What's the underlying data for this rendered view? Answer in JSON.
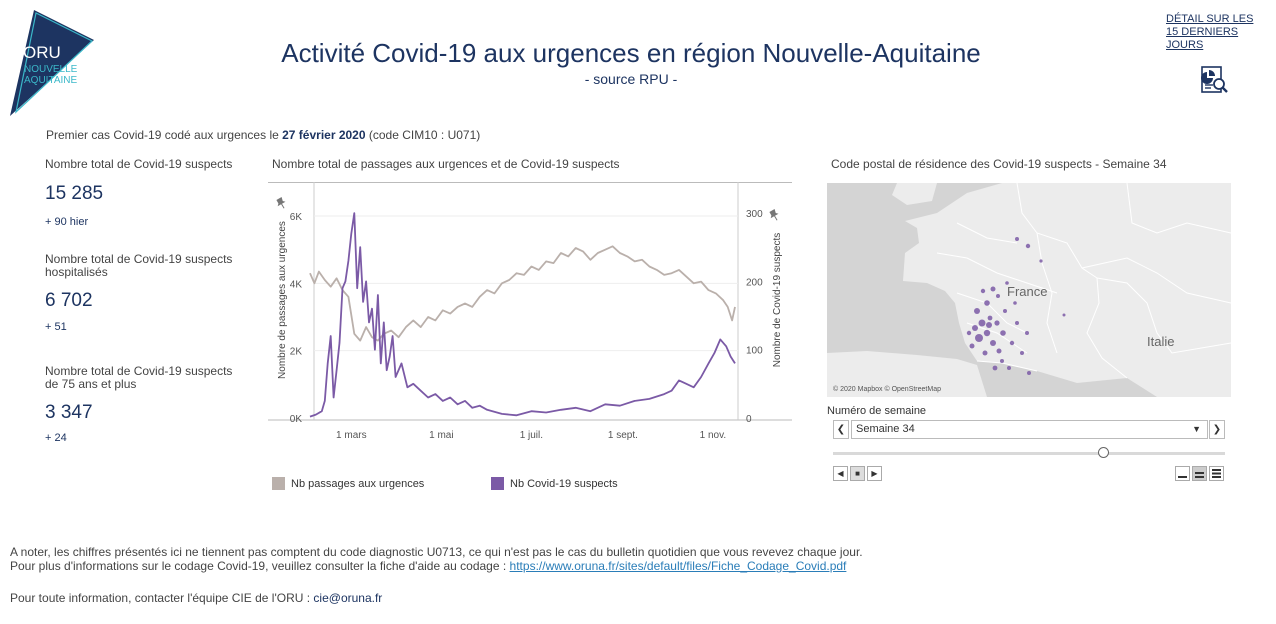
{
  "brand": {
    "logo_main": "ORU",
    "logo_line1": "NOUVELLE",
    "logo_line2": "AQUITAINE",
    "color_primary": "#1d3461",
    "color_accent": "#3bb8c9"
  },
  "header": {
    "title": "Activité Covid-19 aux urgences en région Nouvelle-Aquitaine",
    "subtitle": "- source RPU -",
    "detail_link": "DÉTAIL SUR LES 15 DERNIERS JOURS",
    "detail_icon": "report-search-icon"
  },
  "first_case": {
    "prefix": "Premier cas Covid-19 codé aux urgences le",
    "date": "27 février 2020",
    "suffix": "(code CIM10 : U071)"
  },
  "kpis": [
    {
      "label": "Nombre total de Covid-19 suspects",
      "value": "15 285",
      "delta": "+ 90 hier"
    },
    {
      "label": "Nombre total de Covid-19 suspects hospitalisés",
      "value": "6 702",
      "delta": "+ 51"
    },
    {
      "label": "Nombre total de Covid-19 suspects de 75 ans et plus",
      "value": "3 347",
      "delta": "+ 24"
    }
  ],
  "chart": {
    "title": "Nombre total de passages aux urgences et de Covid-19 suspects"
  },
  "chart_data": {
    "type": "line",
    "x_ticks": [
      "1 mars",
      "1 mai",
      "1 juil.",
      "1 sept.",
      "1 nov."
    ],
    "x_tick_days": [
      28,
      89,
      150,
      212,
      273
    ],
    "x_range_days": [
      0,
      290
    ],
    "y_left_label": "Nombre de passages aux urgences",
    "y_left_ticks": [
      "0K",
      "2K",
      "4K",
      "6K"
    ],
    "y_left_tick_values": [
      0,
      2000,
      4000,
      6000
    ],
    "y_left_range": [
      0,
      6000
    ],
    "y_right_label": "Nombre de Covid-19 suspects",
    "y_right_ticks": [
      "0",
      "100",
      "200",
      "300"
    ],
    "y_right_tick_values": [
      0,
      100,
      200,
      300
    ],
    "y_right_range": [
      0,
      325
    ],
    "series": [
      {
        "name": "Nb passages aux urgences",
        "axis": "left",
        "color": "#bab0ab",
        "x": [
          0,
          3,
          6,
          10,
          14,
          18,
          22,
          26,
          30,
          34,
          38,
          42,
          46,
          50,
          55,
          60,
          65,
          70,
          75,
          80,
          85,
          90,
          95,
          100,
          105,
          110,
          115,
          120,
          125,
          130,
          135,
          140,
          145,
          150,
          155,
          160,
          165,
          170,
          175,
          180,
          185,
          190,
          195,
          200,
          205,
          210,
          215,
          220,
          225,
          230,
          235,
          240,
          245,
          250,
          255,
          260,
          265,
          270,
          275,
          280,
          283,
          286,
          288
        ],
        "values": [
          4300,
          4000,
          4350,
          4100,
          3900,
          4150,
          3800,
          3600,
          2500,
          2300,
          2700,
          2400,
          2300,
          2500,
          2600,
          2400,
          2700,
          2900,
          2700,
          3000,
          2900,
          3200,
          3100,
          3300,
          3400,
          3300,
          3600,
          3800,
          3700,
          4000,
          4100,
          4300,
          4250,
          4500,
          4400,
          4650,
          4600,
          4900,
          4800,
          5050,
          4950,
          4700,
          4900,
          5000,
          5100,
          4900,
          4800,
          4650,
          4700,
          4500,
          4400,
          4250,
          4300,
          4400,
          4200,
          4000,
          4050,
          3800,
          3700,
          3500,
          3300,
          2900,
          3300
        ]
      },
      {
        "name": "Nb Covid-19 suspects",
        "axis": "right",
        "color": "#7b5aa6",
        "x": [
          0,
          4,
          8,
          10,
          12,
          14,
          16,
          18,
          20,
          22,
          24,
          26,
          28,
          30,
          32,
          34,
          36,
          38,
          40,
          42,
          44,
          46,
          48,
          50,
          52,
          54,
          56,
          58,
          62,
          66,
          70,
          75,
          80,
          85,
          90,
          95,
          100,
          105,
          110,
          115,
          120,
          130,
          140,
          150,
          160,
          170,
          180,
          190,
          200,
          210,
          220,
          230,
          240,
          245,
          250,
          255,
          260,
          265,
          270,
          274,
          278,
          282,
          285,
          288
        ],
        "values": [
          2,
          5,
          10,
          25,
          80,
          120,
          30,
          70,
          110,
          190,
          200,
          230,
          270,
          300,
          190,
          250,
          170,
          200,
          140,
          160,
          100,
          180,
          80,
          140,
          70,
          90,
          120,
          60,
          80,
          45,
          50,
          40,
          30,
          35,
          25,
          30,
          20,
          25,
          15,
          18,
          12,
          6,
          4,
          10,
          8,
          12,
          15,
          10,
          20,
          18,
          25,
          28,
          35,
          40,
          55,
          50,
          45,
          60,
          80,
          95,
          115,
          105,
          90,
          80
        ]
      }
    ],
    "legend": "bottom",
    "grid": true
  },
  "map": {
    "title": "Code postal de résidence des Covid-19 suspects - Semaine 34",
    "label_france": "France",
    "label_italie": "Italie",
    "credit": "© 2020 Mapbox © OpenStreetMap",
    "dot_color": "#7b5aa6"
  },
  "week": {
    "label": "Numéro de semaine",
    "selected": "Semaine 34",
    "slider_fraction": 0.69
  },
  "notes": {
    "line1": "A noter, les chiffres présentés ici ne tiennent pas comptent du code diagnostic U0713, ce qui n'est pas le cas du bulletin quotidien que vous revevez chaque jour.",
    "line2_prefix": "Pour plus d'informations sur le codage Covid-19, veuillez consulter la fiche d'aide au codage :",
    "line2_link": "https://www.oruna.fr/sites/default/files/Fiche_Codage_Covid.pdf",
    "contact_prefix": "Pour toute information, contacter l'équipe CIE de l'ORU :",
    "contact_email": "cie@oruna.fr"
  }
}
